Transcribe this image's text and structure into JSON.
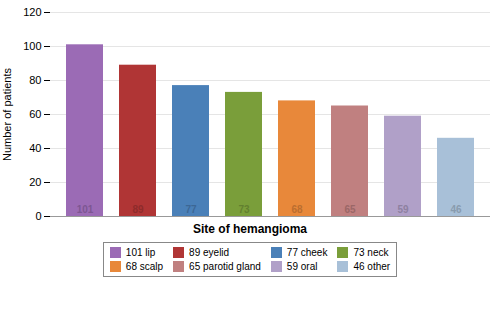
{
  "chart_data": {
    "type": "bar",
    "xlabel": "Site of hemangioma",
    "ylabel": "Number of patients",
    "categories": [
      "101 lip",
      "89 eyelid",
      "77 cheek",
      "73 neck",
      "68 scalp",
      "65 parotid gland",
      "59 oral",
      "46 other"
    ],
    "values": [
      101,
      89,
      77,
      73,
      68,
      65,
      59,
      46
    ],
    "colors": [
      "#9b6bb5",
      "#b03535",
      "#4a80b8",
      "#7a9e3a",
      "#e8883a",
      "#c08080",
      "#b0a0c8",
      "#a8c0d8"
    ],
    "ylim": [
      0,
      120
    ],
    "yticks": [
      0,
      20,
      40,
      60,
      80,
      100,
      120
    ],
    "grid": true,
    "data_labels": true,
    "tick_labels": "y",
    "legend": "bottom"
  }
}
